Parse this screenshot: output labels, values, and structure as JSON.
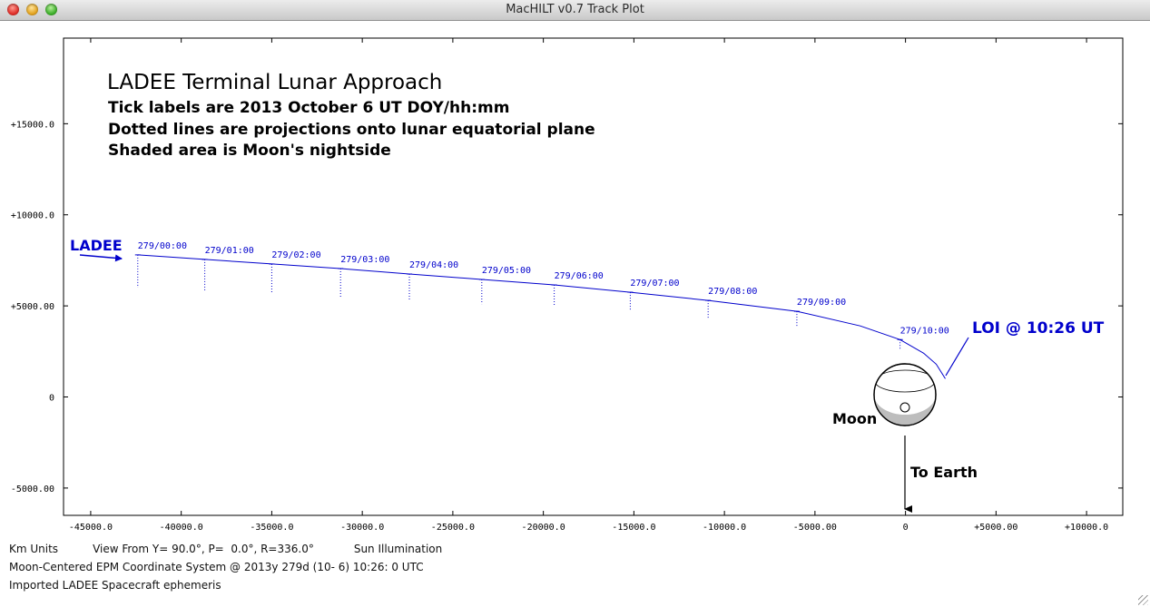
{
  "window": {
    "title": "MacHILT v0.7 Track Plot"
  },
  "plot": {
    "title": "LADEE Terminal Lunar Approach",
    "subtitle_lines": [
      "Tick labels are 2013 October 6 UT DOY/hh:mm",
      "Dotted lines are projections onto lunar equatorial plane",
      "Shaded area is Moon's nightside"
    ],
    "spacecraft_label": "LADEE",
    "loi_label": "LOI @ 10:26 UT",
    "moon_label": "Moon",
    "earth_label": "To Earth",
    "track_color": "#0000cc",
    "x_tick_labels": [
      "-45000.0",
      "-40000.0",
      "-35000.0",
      "-30000.0",
      "-25000.0",
      "-20000.0",
      "-15000.0",
      "-10000.0",
      "-5000.00",
      "0",
      "+5000.00",
      "+10000.0"
    ],
    "y_tick_labels": [
      "+15000.0",
      "+10000.0",
      "+5000.00",
      "0",
      "-5000.00"
    ]
  },
  "chart_data": {
    "type": "line",
    "xlim": [
      -46500,
      12000
    ],
    "ylim": [
      -6500,
      19700
    ],
    "x_ticks": [
      -45000,
      -40000,
      -35000,
      -30000,
      -25000,
      -20000,
      -15000,
      -10000,
      -5000,
      0,
      5000,
      10000
    ],
    "y_ticks": [
      15000,
      10000,
      5000,
      0,
      -5000
    ],
    "track": {
      "x": [
        -42400,
        -38700,
        -35000,
        -31200,
        -27400,
        -23400,
        -19400,
        -15200,
        -10900,
        -6000,
        -2500,
        -300,
        1000,
        1700,
        2200
      ],
      "y": [
        7800,
        7550,
        7300,
        7050,
        6750,
        6450,
        6150,
        5750,
        5300,
        4700,
        3900,
        3150,
        2400,
        1800,
        1000
      ]
    },
    "ticks": [
      {
        "label": "279/00:00",
        "x": -42400,
        "y": 7800,
        "proj_y": 6000
      },
      {
        "label": "279/01:00",
        "x": -38700,
        "y": 7550,
        "proj_y": 5800
      },
      {
        "label": "279/02:00",
        "x": -35000,
        "y": 7300,
        "proj_y": 5700
      },
      {
        "label": "279/03:00",
        "x": -31200,
        "y": 7050,
        "proj_y": 5500
      },
      {
        "label": "279/04:00",
        "x": -27400,
        "y": 6750,
        "proj_y": 5300
      },
      {
        "label": "279/05:00",
        "x": -23400,
        "y": 6450,
        "proj_y": 5100
      },
      {
        "label": "279/06:00",
        "x": -19400,
        "y": 6150,
        "proj_y": 5000
      },
      {
        "label": "279/07:00",
        "x": -15200,
        "y": 5750,
        "proj_y": 4700
      },
      {
        "label": "279/08:00",
        "x": -10900,
        "y": 5300,
        "proj_y": 4350
      },
      {
        "label": "279/09:00",
        "x": -6000,
        "y": 4700,
        "proj_y": 3900
      },
      {
        "label": "279/10:00",
        "x": -300,
        "y": 3150,
        "proj_y": 2600
      }
    ],
    "moon": {
      "x": 0,
      "y": 0,
      "radius_km": 1737
    }
  },
  "status": {
    "line1_units": "Km Units",
    "line1_view": "View From Y= 90.0°, P=  0.0°, R=336.0°",
    "line1_illum": "Sun Illumination",
    "line2": "Moon-Centered EPM Coordinate System @ 2013y 279d (10- 6) 10:26: 0 UTC",
    "line3": "Imported LADEE Spacecraft ephemeris"
  }
}
